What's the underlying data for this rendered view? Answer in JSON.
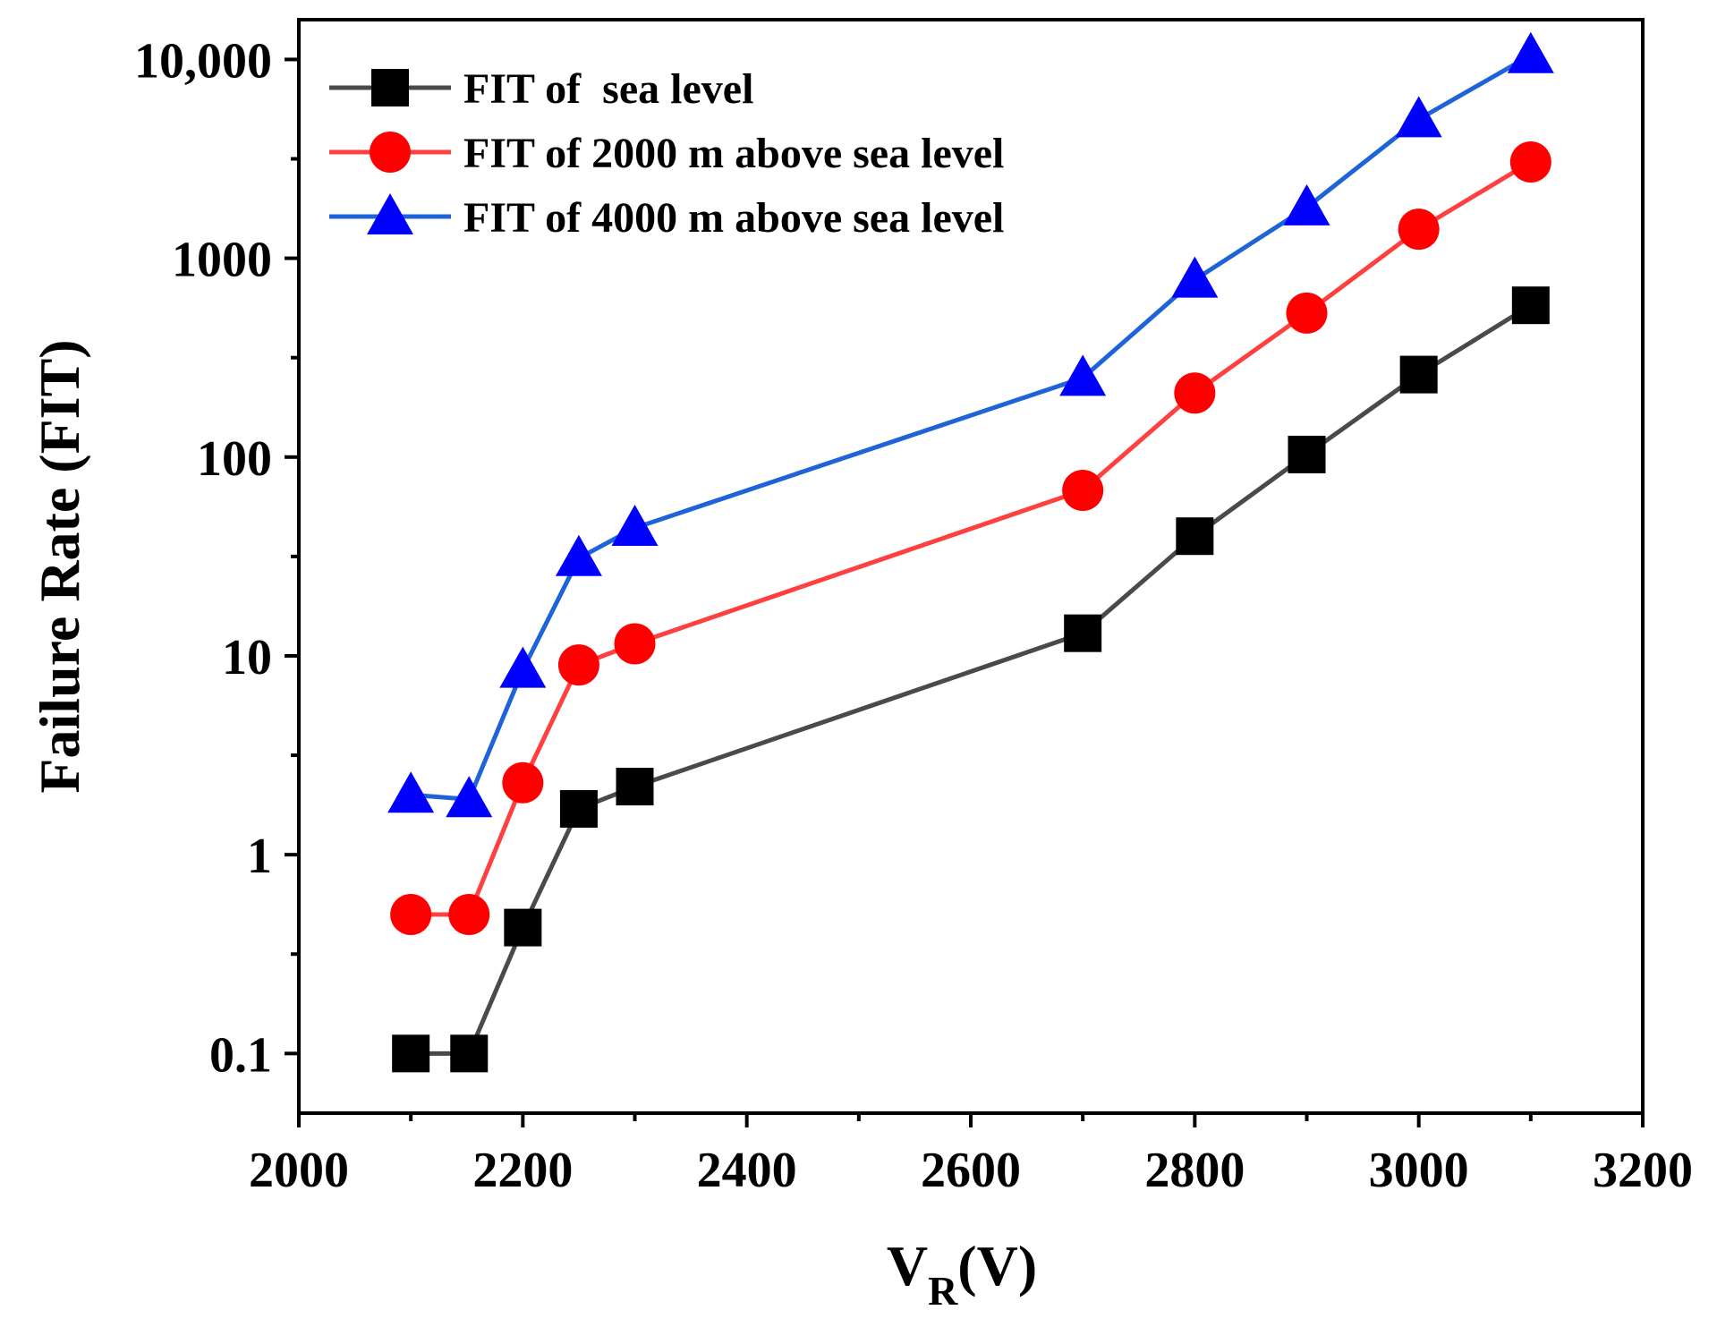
{
  "chart_data": {
    "type": "line",
    "title": "",
    "xlabel": "V",
    "xlabel_subscript": "R",
    "xlabel_suffix": "(V)",
    "ylabel": "Failure Rate (FIT)",
    "xlim": [
      2000,
      3200
    ],
    "ylim_log10": [
      -1.3,
      4.2
    ],
    "y_scale": "log",
    "x_ticks": [
      2000,
      2200,
      2400,
      2600,
      2800,
      3000,
      3200
    ],
    "x_tick_labels": [
      "2000",
      "2200",
      "2400",
      "2600",
      "2800",
      "3000",
      "3200"
    ],
    "y_ticks": [
      0.1,
      1,
      10,
      100,
      1000,
      10000
    ],
    "y_tick_labels": [
      "0.1",
      "1",
      "10",
      "100",
      "1000",
      "10,000"
    ],
    "legend_position": "top-left",
    "x": [
      2100,
      2152,
      2200,
      2250,
      2300,
      2700,
      2800,
      2900,
      3000,
      3100
    ],
    "series": [
      {
        "name": "FIT of  sea level",
        "color": "#4a4a4a",
        "marker": "square",
        "marker_color": "#000000",
        "values": [
          0.1,
          0.1,
          0.43,
          1.7,
          2.2,
          13,
          40,
          103,
          260,
          580
        ]
      },
      {
        "name": "FIT of 2000 m above sea level",
        "color": "#ff4040",
        "marker": "circle",
        "marker_color": "#ff0000",
        "values": [
          0.5,
          0.5,
          2.3,
          9,
          11.5,
          68,
          210,
          530,
          1400,
          3050
        ]
      },
      {
        "name": "FIT of 4000 m above sea level",
        "color": "#1e64d8",
        "marker": "triangle",
        "marker_color": "#0000ff",
        "values": [
          2,
          1.9,
          8.5,
          31,
          44,
          250,
          780,
          1800,
          5000,
          10500
        ]
      }
    ]
  }
}
